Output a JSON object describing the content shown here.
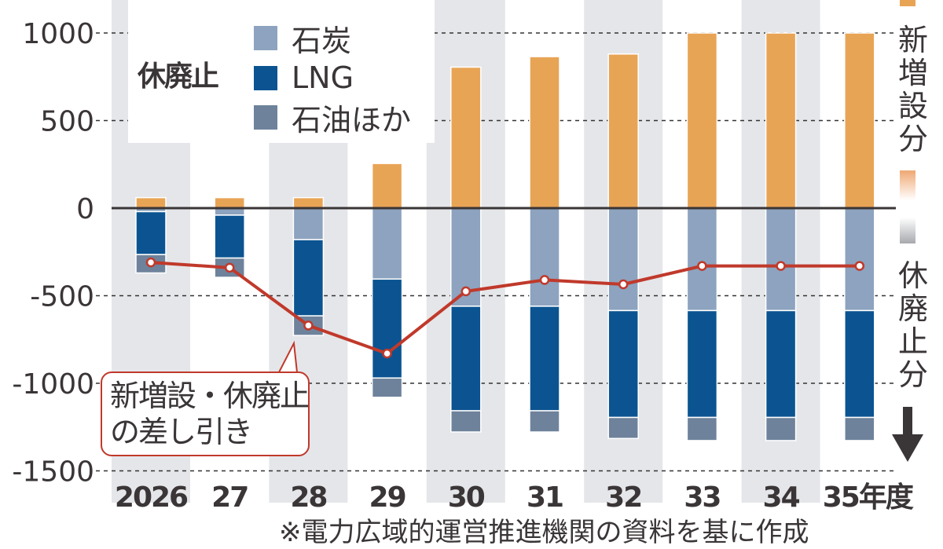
{
  "chart_data": {
    "type": "bar",
    "stacked": true,
    "categories": [
      "2026",
      "27",
      "28",
      "29",
      "30",
      "31",
      "32",
      "33",
      "34",
      "35年度"
    ],
    "series": [
      {
        "name": "新増設分",
        "color": "#e8a455",
        "values": [
          60,
          60,
          60,
          255,
          805,
          865,
          880,
          1000,
          1000,
          1000
        ]
      },
      {
        "name": "石炭",
        "color": "#8da3bf",
        "values": [
          -20,
          -40,
          -180,
          -405,
          -560,
          -560,
          -585,
          -585,
          -585,
          -585
        ]
      },
      {
        "name": "LNG",
        "color": "#0b5491",
        "values": [
          -245,
          -245,
          -435,
          -565,
          -597,
          -597,
          -610,
          -610,
          -610,
          -610
        ]
      },
      {
        "name": "石油ほか",
        "color": "#6e829b",
        "values": [
          -105,
          -110,
          -112,
          -110,
          -121,
          -121,
          -120,
          -132,
          -132,
          -132
        ]
      }
    ],
    "line": {
      "name": "新増設・休廃止の差し引き",
      "color": "#c0392b",
      "values": [
        -310,
        -340,
        -670,
        -830,
        -475,
        -410,
        -435,
        -330,
        -330,
        -330
      ]
    },
    "yticks": [
      1000,
      500,
      0,
      -500,
      -1000,
      -1500
    ],
    "ytick_labels": [
      "1000",
      "500",
      "0",
      "-500",
      "-1000",
      "-1500"
    ],
    "ylim": [
      -1500,
      1000
    ],
    "grid": true,
    "title": "",
    "xlabel": "",
    "ylabel": ""
  },
  "legend": {
    "group_title": "休廃止",
    "items": [
      {
        "label": "石炭",
        "color": "#8da3bf"
      },
      {
        "label": "LNG",
        "color": "#0b5491"
      },
      {
        "label": "石油ほか",
        "color": "#6e829b"
      }
    ]
  },
  "callout": {
    "line1": "新増設・休廃止",
    "line2": "の差し引き"
  },
  "side_labels": {
    "top": "新増設分",
    "bottom": "休廃止分"
  },
  "footnote": "※電力広域的運営推進機関の資料を基に作成"
}
